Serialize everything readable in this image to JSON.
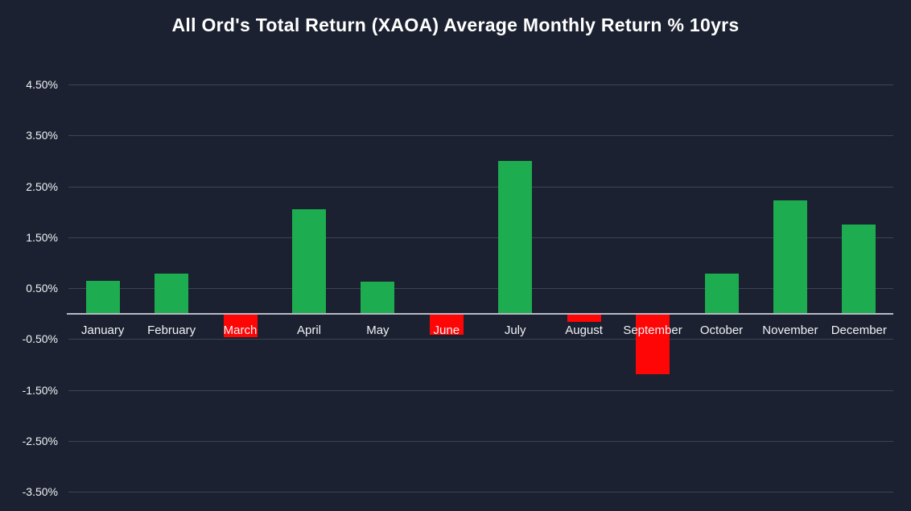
{
  "chart_data": {
    "type": "bar",
    "title": "All Ord's Total Return (XAOA) Average Monthly Return % 10yrs",
    "xlabel": "",
    "ylabel": "",
    "categories": [
      "January",
      "February",
      "March",
      "April",
      "May",
      "June",
      "July",
      "August",
      "September",
      "October",
      "November",
      "December"
    ],
    "values": [
      0.65,
      0.78,
      -0.45,
      2.05,
      0.62,
      -0.4,
      3.0,
      -0.15,
      -1.18,
      0.78,
      2.22,
      1.75
    ],
    "ylim": [
      -3.5,
      4.5
    ],
    "yticks": [
      {
        "label": "4.50%",
        "value": 4.5
      },
      {
        "label": "3.50%",
        "value": 3.5
      },
      {
        "label": "2.50%",
        "value": 2.5
      },
      {
        "label": "1.50%",
        "value": 1.5
      },
      {
        "label": "0.50%",
        "value": 0.5
      },
      {
        "label": "-0.50%",
        "value": -0.5
      },
      {
        "label": "-1.50%",
        "value": -1.5
      },
      {
        "label": "-2.50%",
        "value": -2.5
      },
      {
        "label": "-3.50%",
        "value": -3.5
      }
    ],
    "grid": true,
    "legend": "none",
    "colors": {
      "positive": "#1dac4f",
      "negative": "#fe0606",
      "background": "#1b2130",
      "gridline": "#3c4454",
      "zero_line": "#b5bac4",
      "text": "#f0f2f6"
    }
  }
}
